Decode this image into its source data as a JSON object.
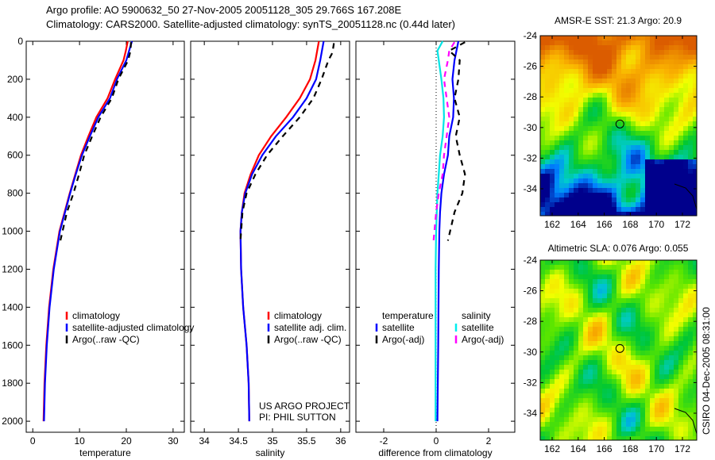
{
  "title": {
    "line1": "Argo profile: AO 5900632_50 27-Nov-2005 20051128_305 29.766S 167.208E",
    "line2": "Climatology: CARS2000. Satellite-adjusted climatology: synTS_20051128.nc (0.44d later)"
  },
  "colors": {
    "climatology": "#ff0000",
    "satellite": "#0000ff",
    "argo": "#000000",
    "sal_satellite": "#00e5e5",
    "sal_argo": "#ff00ff"
  },
  "chart_data": [
    {
      "type": "line",
      "xlabel": "temperature",
      "xlim": [
        -1.4,
        32.4
      ],
      "ylim": [
        2058,
        0
      ],
      "xticks": [
        0,
        10,
        20,
        30
      ],
      "yticks": [
        0,
        200,
        400,
        600,
        800,
        1000,
        1200,
        1400,
        1600,
        1800,
        2000
      ],
      "legend": [
        "climatology",
        "satellite-adjusted climatology",
        "Argo(..raw -QC)"
      ],
      "series": [
        {
          "name": "climatology",
          "color": "#ff0000",
          "dash": false,
          "depth": [
            0,
            50,
            100,
            200,
            300,
            400,
            500,
            600,
            700,
            800,
            1000,
            1200,
            1400,
            1600,
            1800,
            2000
          ],
          "values": [
            20.3,
            19.9,
            19.4,
            17.6,
            16.0,
            13.6,
            11.9,
            10.3,
            9.1,
            7.9,
            5.7,
            4.4,
            3.5,
            2.9,
            2.5,
            2.3
          ]
        },
        {
          "name": "satellite-adjusted climatology",
          "color": "#0000ff",
          "dash": false,
          "depth": [
            0,
            50,
            100,
            200,
            300,
            400,
            500,
            600,
            700,
            800,
            1000,
            1200,
            1400,
            1600,
            1800,
            2000
          ],
          "values": [
            21.2,
            20.6,
            20.0,
            18.0,
            16.5,
            14.0,
            12.2,
            10.5,
            9.2,
            8.0,
            5.8,
            4.5,
            3.6,
            3.0,
            2.6,
            2.4
          ]
        },
        {
          "name": "Argo(..raw -QC)",
          "color": "#000000",
          "dash": true,
          "depth": [
            5,
            50,
            100,
            200,
            300,
            400,
            500,
            600,
            700,
            800,
            900,
            1050
          ],
          "values": [
            21.0,
            20.9,
            20.4,
            18.3,
            16.9,
            14.5,
            12.7,
            11.0,
            9.9,
            8.7,
            7.3,
            5.9
          ]
        }
      ]
    },
    {
      "type": "line",
      "xlabel": "salinity",
      "xlim": [
        33.8,
        36.13
      ],
      "ylim": [
        2058,
        0
      ],
      "xticks": [
        34,
        34.5,
        35,
        35.5,
        36
      ],
      "legend": [
        "climatology",
        "satellite adj. clim.",
        "Argo(..raw -QC)"
      ],
      "annotation": [
        "US ARGO PROJECT",
        "PI: PHIL SUTTON"
      ],
      "series": [
        {
          "name": "climatology",
          "color": "#ff0000",
          "dash": false,
          "depth": [
            0,
            100,
            200,
            300,
            400,
            500,
            600,
            700,
            800,
            900,
            1000,
            1200,
            1400,
            1600,
            1800,
            2000
          ],
          "values": [
            35.68,
            35.63,
            35.55,
            35.4,
            35.2,
            34.98,
            34.8,
            34.68,
            34.59,
            34.55,
            34.53,
            34.54,
            34.57,
            34.62,
            34.65,
            34.66
          ]
        },
        {
          "name": "satellite adj. clim.",
          "color": "#0000ff",
          "dash": false,
          "depth": [
            0,
            100,
            200,
            300,
            400,
            500,
            600,
            700,
            800,
            900,
            1000,
            1200,
            1400,
            1600,
            1800,
            2000
          ],
          "values": [
            35.75,
            35.7,
            35.64,
            35.5,
            35.3,
            35.05,
            34.85,
            34.7,
            34.6,
            34.55,
            34.53,
            34.54,
            34.57,
            34.62,
            34.65,
            34.66
          ]
        },
        {
          "name": "Argo(..raw -QC)",
          "color": "#000000",
          "dash": true,
          "depth": [
            10,
            60,
            100,
            200,
            300,
            400,
            500,
            600,
            700,
            800,
            900,
            1050
          ],
          "values": [
            35.9,
            35.88,
            35.82,
            35.72,
            35.6,
            35.4,
            35.15,
            34.92,
            34.75,
            34.62,
            34.56,
            34.53
          ]
        }
      ]
    },
    {
      "type": "line",
      "xlabel": "difference from climatology",
      "xlim": [
        -3.06,
        3.0
      ],
      "ylim": [
        2058,
        0
      ],
      "xticks": [
        -2,
        0,
        2
      ],
      "legend_headers": [
        "temperature",
        "salinity"
      ],
      "legend": [
        "satellite",
        "Argo(-adj)",
        "satellite",
        "Argo(-adj)"
      ],
      "series": [
        {
          "name": "temperature satellite",
          "color": "#0000ff",
          "dash": false,
          "depth": [
            0,
            100,
            200,
            300,
            400,
            500,
            600,
            700,
            800,
            900,
            1000,
            1200,
            1600,
            2000
          ],
          "values": [
            0.85,
            0.7,
            0.62,
            0.68,
            0.65,
            0.5,
            0.45,
            0.3,
            0.2,
            0.15,
            0.12,
            0.1,
            0.08,
            0.05
          ]
        },
        {
          "name": "temperature Argo(-adj)",
          "color": "#000000",
          "dash": true,
          "depth": [
            5,
            50,
            100,
            200,
            300,
            400,
            500,
            600,
            700,
            800,
            900,
            1050
          ],
          "values": [
            1.1,
            0.5,
            0.9,
            0.85,
            0.7,
            0.9,
            0.75,
            0.9,
            1.1,
            1.0,
            0.7,
            0.45
          ]
        },
        {
          "name": "salinity satellite",
          "color": "#00e5e5",
          "dash": false,
          "depth": [
            0,
            50,
            100,
            200,
            300,
            400,
            500,
            600,
            700,
            800,
            1000,
            1200,
            1600,
            2000
          ],
          "values": [
            0.25,
            0.05,
            0.1,
            0.2,
            0.28,
            0.3,
            0.25,
            0.15,
            0.1,
            0.05,
            0.0,
            -0.02,
            -0.02,
            -0.02
          ]
        },
        {
          "name": "salinity Argo(-adj)",
          "color": "#ff00ff",
          "dash": true,
          "depth": [
            5,
            50,
            100,
            200,
            300,
            400,
            500,
            600,
            700,
            800,
            900,
            1050
          ],
          "values": [
            0.7,
            0.5,
            0.45,
            0.3,
            0.4,
            0.5,
            0.4,
            0.3,
            0.25,
            0.1,
            0.0,
            -0.1
          ]
        }
      ]
    }
  ],
  "maps": [
    {
      "title": "AMSR-E SST: 21.3 Argo: 20.9",
      "lon_ticks": [
        162,
        164,
        166,
        168,
        170,
        172
      ],
      "lat_ticks": [
        -24,
        -26,
        -28,
        -30,
        -32,
        -34
      ],
      "float_lon": 167.2,
      "float_lat": -29.77
    },
    {
      "title": "Altimetric SLA: 0.076 Argo: 0.055",
      "lon_ticks": [
        162,
        164,
        166,
        168,
        170,
        172
      ],
      "lat_ticks": [
        -24,
        -26,
        -28,
        -30,
        -32,
        -34
      ],
      "float_lon": 167.2,
      "float_lat": -29.77
    }
  ],
  "footer": "CSIRO 04-Dec-2005 08:31:00"
}
